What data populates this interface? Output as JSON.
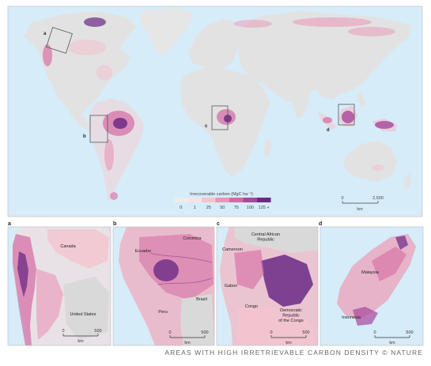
{
  "legend": {
    "title": "Irrecoverable carbon (MgC ha⁻¹)",
    "ticks": [
      "0",
      "1",
      "25",
      "50",
      "75",
      "100",
      "125 +"
    ],
    "colors": [
      "#ececec",
      "#f7e3e6",
      "#f2c4cf",
      "#e996b5",
      "#d56aa2",
      "#a8479b",
      "#6b2a86"
    ]
  },
  "scale_bar": {
    "start": "0",
    "end": "2,500",
    "unit": "km"
  },
  "inset_boxes": [
    "a",
    "b",
    "c",
    "d"
  ],
  "panels": [
    {
      "letter": "a",
      "labels": [
        "Canada",
        "United States"
      ],
      "scale_start": "0",
      "scale_end": "500",
      "unit": "km"
    },
    {
      "letter": "b",
      "labels": [
        "Colombia",
        "Ecuador",
        "Brazil",
        "Peru"
      ],
      "scale_start": "0",
      "scale_end": "500",
      "unit": "km"
    },
    {
      "letter": "c",
      "labels": [
        "Central African\nRepublic",
        "Cameroon",
        "Gabon",
        "Congo",
        "Democratic\nRepublic\nof the Congo"
      ],
      "scale_start": "0",
      "scale_end": "500",
      "unit": "km"
    },
    {
      "letter": "d",
      "labels": [
        "Malaysia",
        "Indonesia"
      ],
      "scale_start": "0",
      "scale_end": "500",
      "unit": "km"
    }
  ],
  "caption": "Areas with high irretrievable carbon density © Nature",
  "colors": {
    "ocean": "#d6ecf8",
    "land": "#e2e2e2",
    "frame": "#9a9a9a"
  }
}
